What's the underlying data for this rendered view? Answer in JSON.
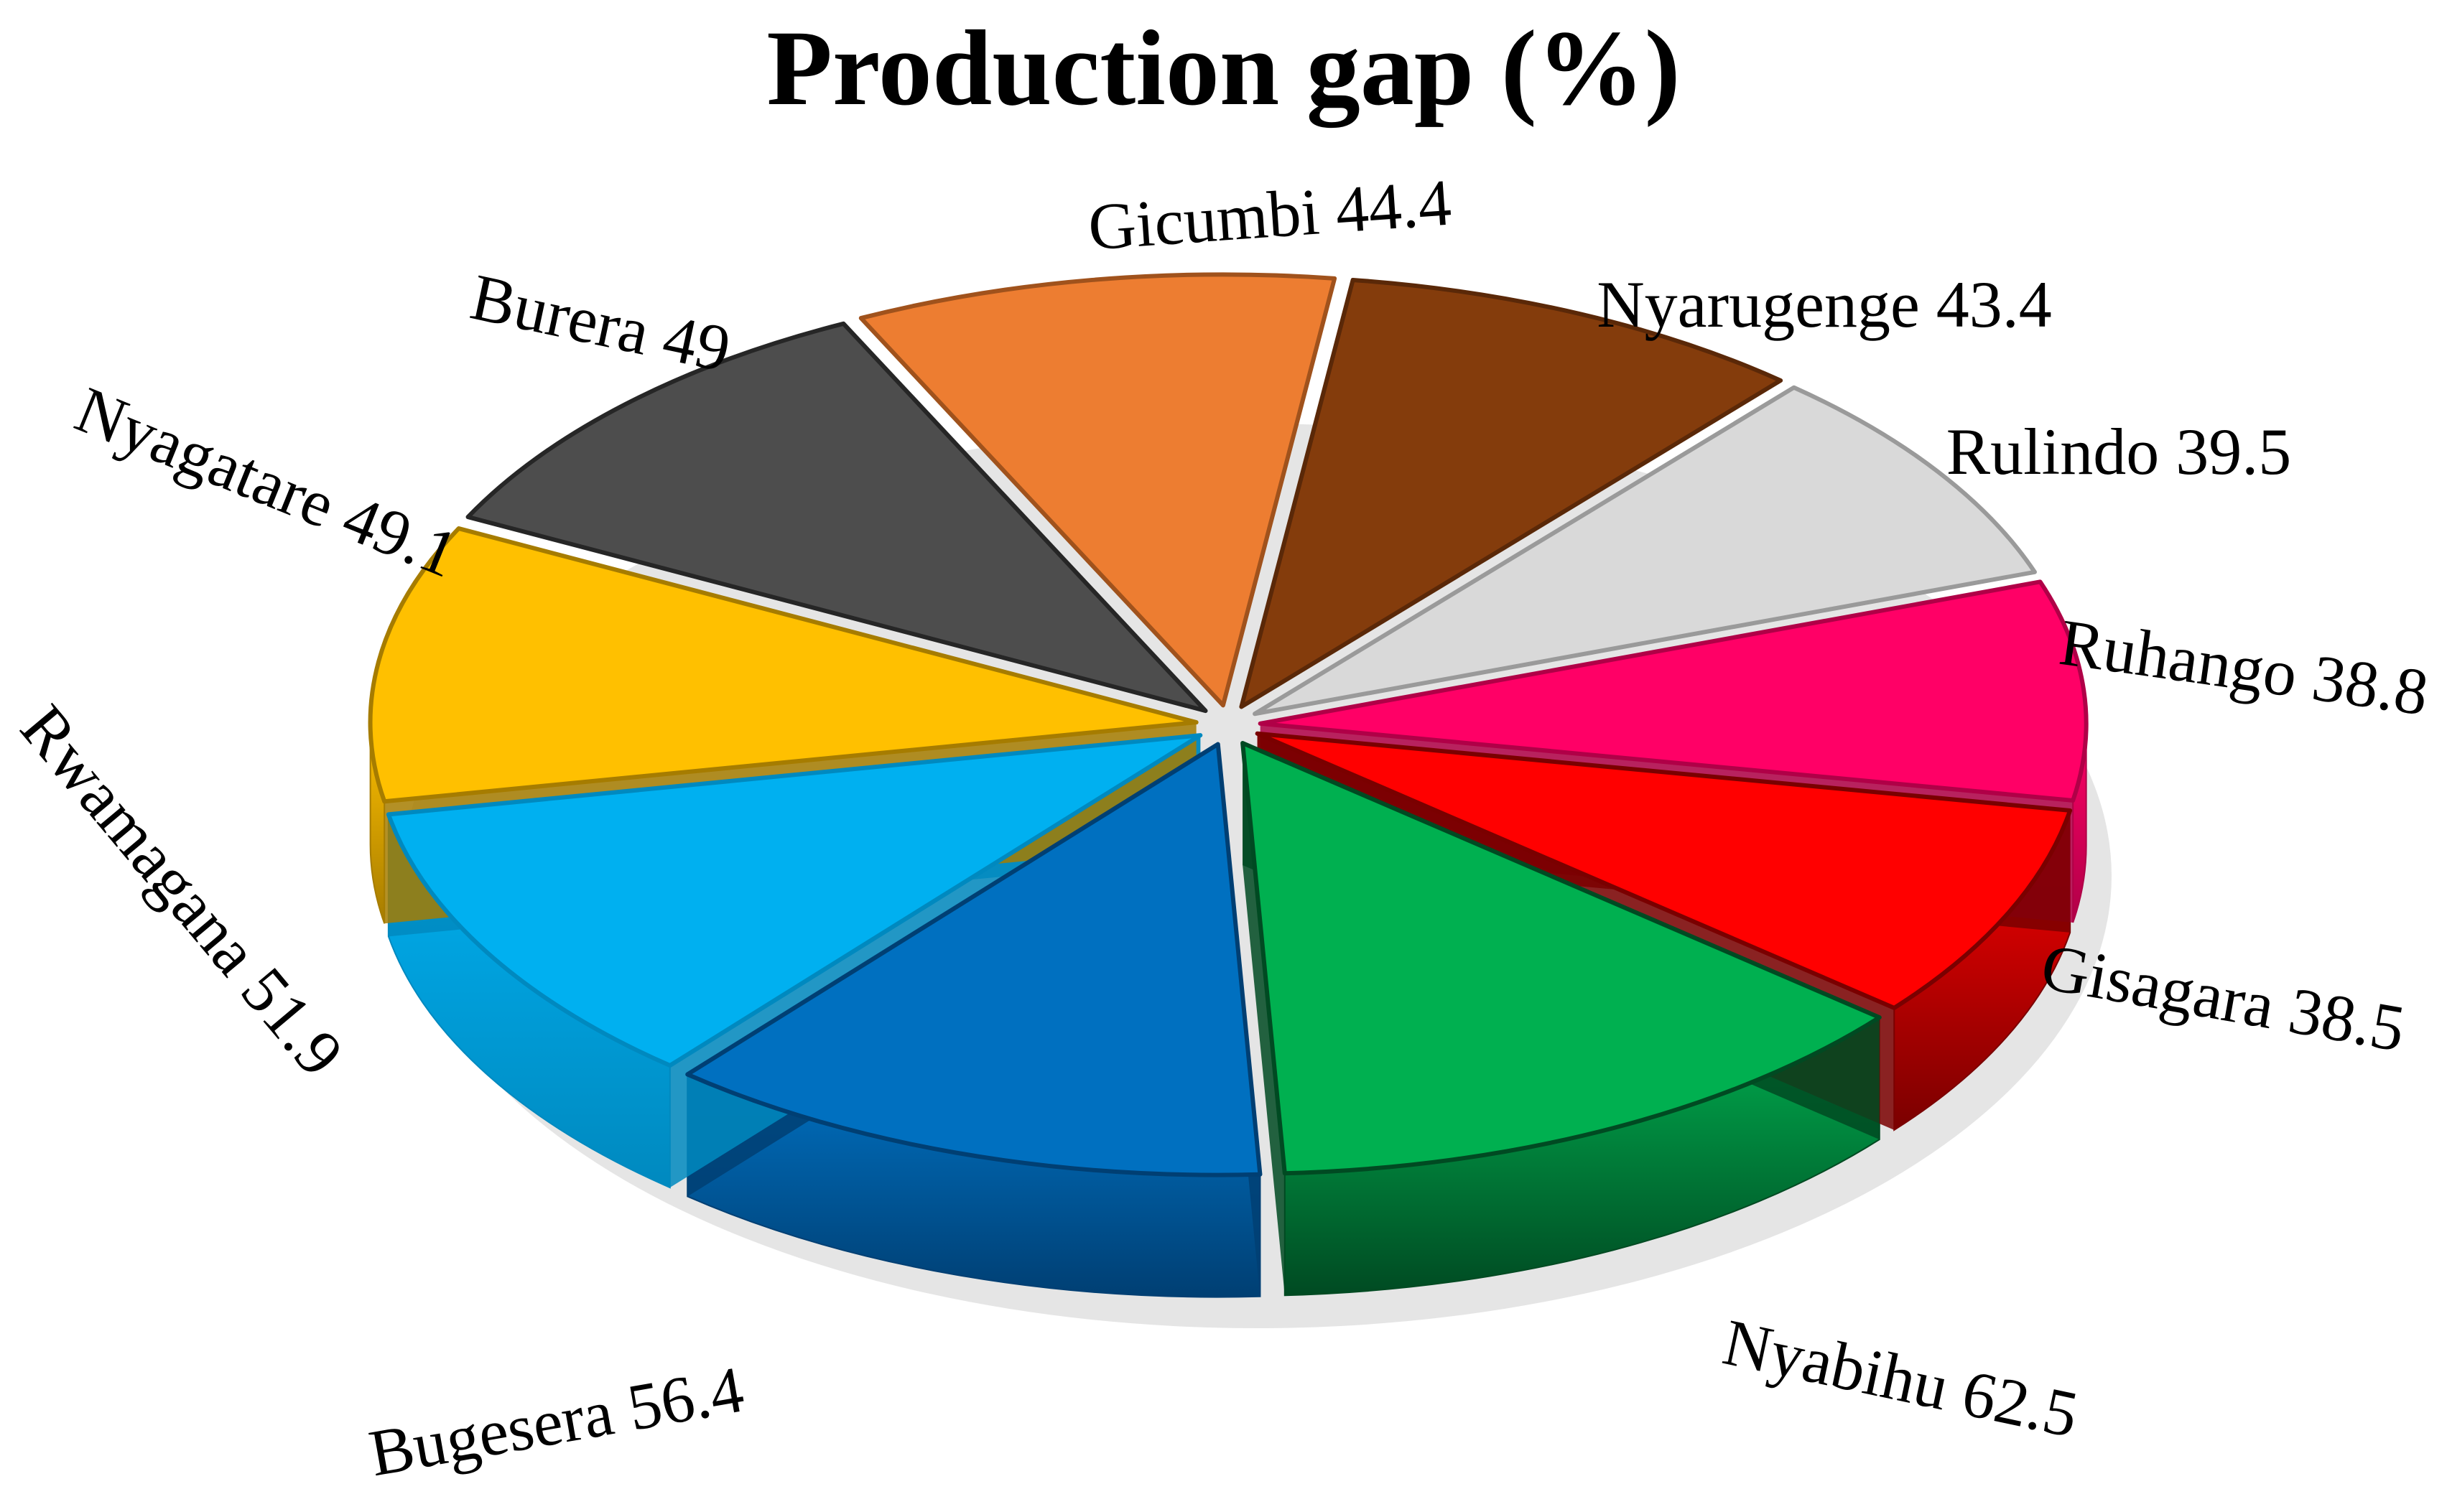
{
  "chart_data": {
    "type": "pie",
    "title": "Production gap (%)",
    "slices": [
      {
        "label": "Gicumbi 44.4",
        "name": "Gicumbi",
        "value": 44.4,
        "color": "#ED7D31",
        "side": "#A0521C"
      },
      {
        "label": "Nyarugenge 43.4",
        "name": "Nyarugenge",
        "value": 43.4,
        "color": "#843C0C",
        "side": "#5A2808"
      },
      {
        "label": "Rulindo 39.5",
        "name": "Rulindo",
        "value": 39.5,
        "color": "#D9D9D9",
        "side": "#9A9A9A"
      },
      {
        "label": "Ruhango 38.8",
        "name": "Ruhango",
        "value": 38.8,
        "color": "#FF0066",
        "side": "#B00047"
      },
      {
        "label": "Gisagara 38.5",
        "name": "Gisagara",
        "value": 38.5,
        "color": "#FF0000",
        "side": "#7A0000"
      },
      {
        "label": "Nyabihu 62.5",
        "name": "Nyabihu",
        "value": 62.5,
        "color": "#00B050",
        "side": "#004A22"
      },
      {
        "label": "Bugesera 56.4",
        "name": "Bugesera",
        "value": 56.4,
        "color": "#0070C0",
        "side": "#003F73"
      },
      {
        "label": "Rwamagana 51.9",
        "name": "Rwamagana",
        "value": 51.9,
        "color": "#00B0F0",
        "side": "#0089BF"
      },
      {
        "label": "Nyagatare 49.1",
        "name": "Nyagatare",
        "value": 49.1,
        "color": "#FFC000",
        "side": "#A67C00"
      },
      {
        "label": "Burera 49",
        "name": "Burera",
        "value": 49,
        "color": "#4D4D4D",
        "side": "#262626"
      }
    ],
    "legend": "none",
    "style": "3d-exploded"
  }
}
